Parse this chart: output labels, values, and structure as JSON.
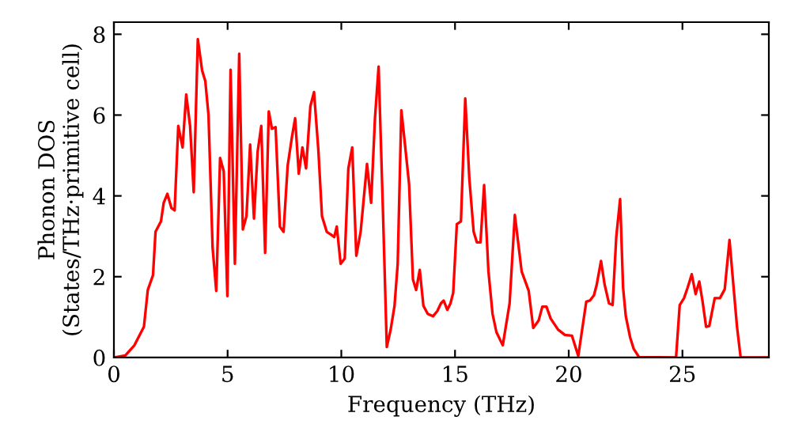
{
  "chart_data": {
    "type": "line",
    "xlabel": "Frequency (THz)",
    "ylabel": "Phonon DOS\n(States/THz·primitive cell)",
    "xlim": [
      0,
      28.8
    ],
    "ylim": [
      0,
      8.3
    ],
    "xticks": [
      0,
      5,
      10,
      15,
      20,
      25
    ],
    "yticks": [
      0,
      2,
      4,
      6,
      8
    ],
    "marker": "none",
    "line_style": "solid",
    "series": [
      {
        "color": "#ff0000",
        "x": [
          0,
          0.5,
          0.9,
          1.32,
          1.49,
          1.72,
          1.83,
          2.07,
          2.19,
          2.35,
          2.53,
          2.67,
          2.83,
          3.02,
          3.18,
          3.35,
          3.51,
          3.69,
          3.88,
          4.02,
          4.16,
          4.34,
          4.5,
          4.67,
          4.83,
          4.99,
          5.13,
          5.32,
          5.51,
          5.67,
          5.83,
          5.99,
          6.16,
          6.32,
          6.48,
          6.65,
          6.81,
          6.95,
          7.11,
          7.3,
          7.46,
          7.64,
          7.83,
          7.97,
          8.13,
          8.29,
          8.45,
          8.64,
          8.8,
          8.99,
          9.15,
          9.36,
          9.55,
          9.69,
          9.8,
          9.97,
          10.15,
          10.31,
          10.48,
          10.66,
          10.85,
          11.13,
          11.31,
          11.48,
          11.64,
          11.83,
          12.0,
          12.17,
          12.34,
          12.48,
          12.64,
          12.8,
          12.98,
          13.15,
          13.29,
          13.45,
          13.61,
          13.8,
          14.03,
          14.22,
          14.38,
          14.5,
          14.66,
          14.8,
          14.92,
          15.08,
          15.26,
          15.45,
          15.63,
          15.82,
          15.96,
          16.12,
          16.28,
          16.47,
          16.65,
          16.82,
          17.1,
          17.4,
          17.63,
          17.93,
          18.24,
          18.44,
          18.68,
          18.84,
          19.02,
          19.21,
          19.53,
          19.83,
          20.14,
          20.42,
          20.77,
          20.93,
          21.11,
          21.23,
          21.42,
          21.58,
          21.77,
          21.93,
          22.09,
          22.26,
          22.39,
          22.51,
          22.7,
          22.86,
          23.09,
          24.72,
          24.88,
          25.07,
          25.23,
          25.41,
          25.58,
          25.74,
          25.88,
          26.04,
          26.18,
          26.42,
          26.65,
          26.86,
          27.07,
          27.23,
          27.4,
          27.56,
          28.8
        ],
        "values": [
          0,
          0.05,
          0.3,
          0.76,
          1.67,
          2.04,
          3.11,
          3.37,
          3.83,
          4.05,
          3.7,
          3.64,
          5.73,
          5.2,
          6.51,
          5.73,
          4.09,
          7.88,
          7.1,
          6.84,
          6.0,
          2.72,
          1.65,
          4.94,
          4.61,
          1.52,
          7.12,
          2.32,
          7.52,
          3.17,
          3.5,
          5.27,
          3.44,
          5.09,
          5.73,
          2.59,
          6.09,
          5.66,
          5.7,
          3.24,
          3.11,
          4.74,
          5.46,
          5.92,
          4.55,
          5.2,
          4.68,
          6.22,
          6.57,
          5.14,
          3.5,
          3.11,
          3.04,
          2.98,
          3.24,
          2.32,
          2.45,
          4.68,
          5.2,
          2.52,
          3.11,
          4.79,
          3.83,
          5.92,
          7.2,
          3.64,
          0.26,
          0.69,
          1.28,
          2.32,
          6.12,
          5.27,
          4.29,
          1.93,
          1.67,
          2.17,
          1.28,
          1.08,
          1.02,
          1.15,
          1.34,
          1.41,
          1.18,
          1.34,
          1.6,
          3.3,
          3.37,
          6.41,
          4.42,
          3.11,
          2.85,
          2.85,
          4.27,
          2.13,
          1.08,
          0.63,
          0.3,
          1.34,
          3.53,
          2.13,
          1.65,
          0.73,
          0.92,
          1.26,
          1.26,
          0.96,
          0.69,
          0.56,
          0.54,
          0.04,
          1.38,
          1.41,
          1.54,
          1.8,
          2.39,
          1.8,
          1.34,
          1.3,
          2.98,
          3.92,
          1.73,
          1.02,
          0.5,
          0.21,
          0.01,
          0,
          1.3,
          1.47,
          1.73,
          2.06,
          1.57,
          1.88,
          1.41,
          0.76,
          0.78,
          1.47,
          1.47,
          1.69,
          2.91,
          1.86,
          0.76,
          0,
          0
        ]
      }
    ]
  }
}
